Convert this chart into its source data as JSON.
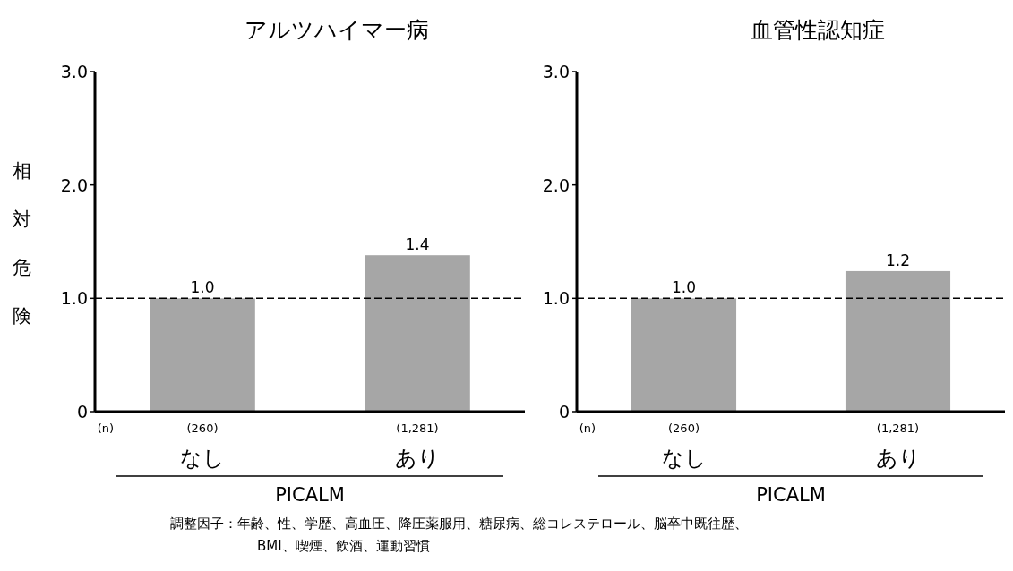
{
  "chart_data": [
    {
      "type": "bar",
      "title": "アルツハイマー病",
      "ylabel": "相対危険",
      "xlabel": "PICALM",
      "categories": [
        "(260)\nなし",
        "(1,281)\nあり"
      ],
      "series": [
        {
          "color": "#a6a6a6",
          "values": [
            1.0,
            1.38
          ],
          "value_labels": [
            "1.0",
            "1.4"
          ]
        }
      ],
      "ylim": [
        0,
        3
      ],
      "yticks": [
        0,
        {
          "value": 1,
          "label": "1.0"
        },
        {
          "value": 2,
          "label": "2.0"
        },
        {
          "value": 3,
          "label": "3.0"
        }
      ],
      "ref_lines": [
        {
          "axis": "y",
          "value": 1,
          "color": "#000000",
          "line_style": "dashed"
        }
      ],
      "annotations": [
        "(n)",
        "調整因子：年齢、性、学歴、高血圧、降圧薬服用、糖尿病、総コレステロール、脳卒中既往歴、",
        "BMI、喫煙、飲酒、運動習慣"
      ]
    },
    {
      "type": "bar",
      "title": "血管性認知症",
      "xlabel": "PICALM",
      "categories": [
        "(260)\nなし",
        "(1,281)\nあり"
      ],
      "series": [
        {
          "color": "#a6a6a6",
          "values": [
            1.0,
            1.24
          ],
          "value_labels": [
            "1.0",
            "1.2"
          ]
        }
      ],
      "ylim": [
        0,
        3
      ],
      "yticks": [
        0,
        {
          "value": 1,
          "label": "1.0"
        },
        {
          "value": 2,
          "label": "2.0"
        },
        {
          "value": 3,
          "label": "3.0"
        }
      ],
      "ref_lines": [
        {
          "axis": "y",
          "value": 1,
          "color": "#000000",
          "line_style": "dashed"
        }
      ],
      "annotations": [
        "(n)"
      ]
    }
  ]
}
